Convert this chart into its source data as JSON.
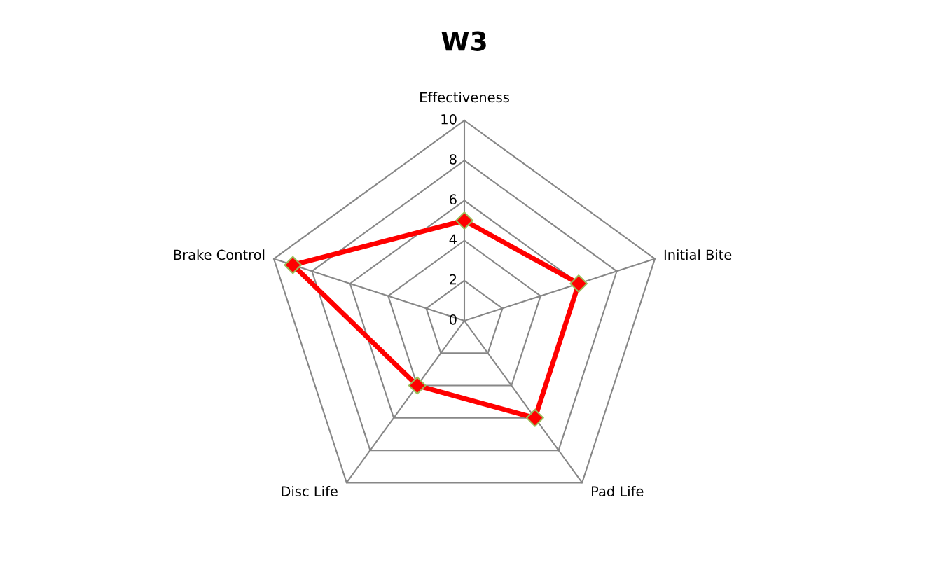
{
  "chart_data": {
    "type": "radar",
    "title": "W3",
    "categories": [
      "Effectiveness",
      "Initial Bite",
      "Pad Life",
      "Disc Life",
      "Brake Control"
    ],
    "series": [
      {
        "color": "#ff0000",
        "values": [
          5,
          6,
          6,
          4,
          9
        ]
      }
    ],
    "ylim": [
      0,
      10
    ],
    "yticks": [
      0,
      2,
      4,
      6,
      8,
      10
    ],
    "grid": true,
    "marker": "diamond",
    "line_style": "solid"
  }
}
